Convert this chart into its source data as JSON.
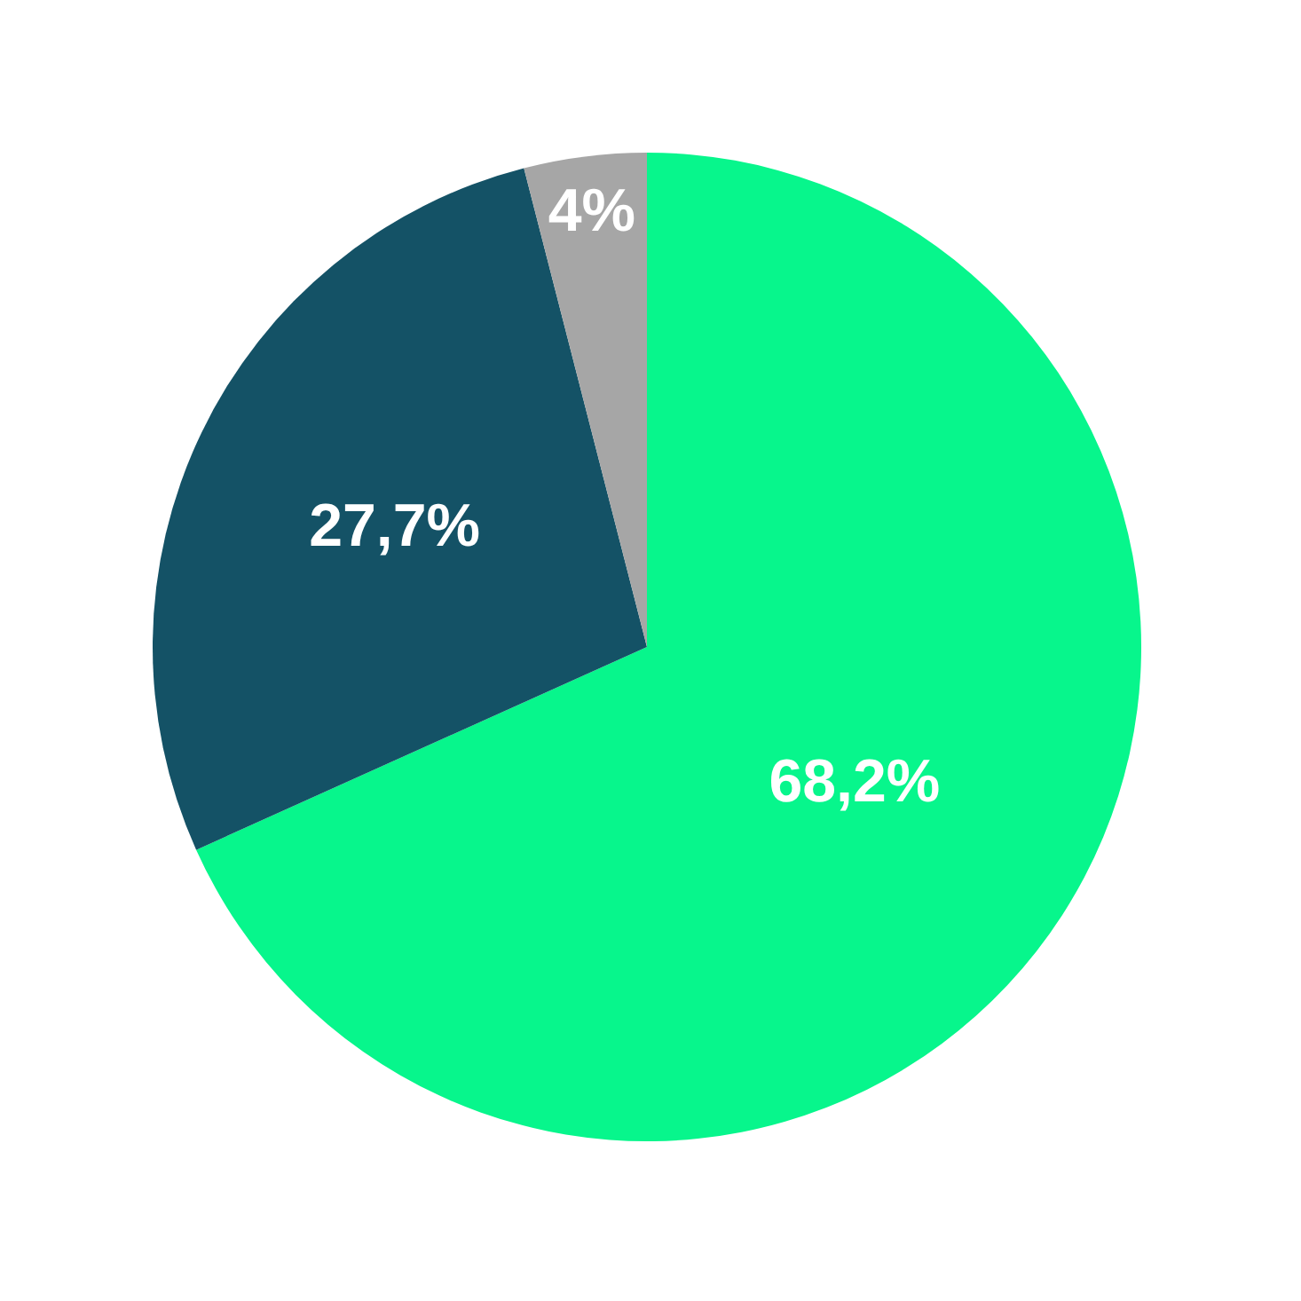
{
  "chart_data": {
    "type": "pie",
    "categories": [
      null,
      null,
      null
    ],
    "values": [
      68.2,
      27.7,
      4
    ],
    "colors": [
      "#07f68c",
      "#145266",
      "#a6a6a6"
    ],
    "value_labels": [
      "68,2%",
      "27,7%",
      "4%"
    ]
  }
}
